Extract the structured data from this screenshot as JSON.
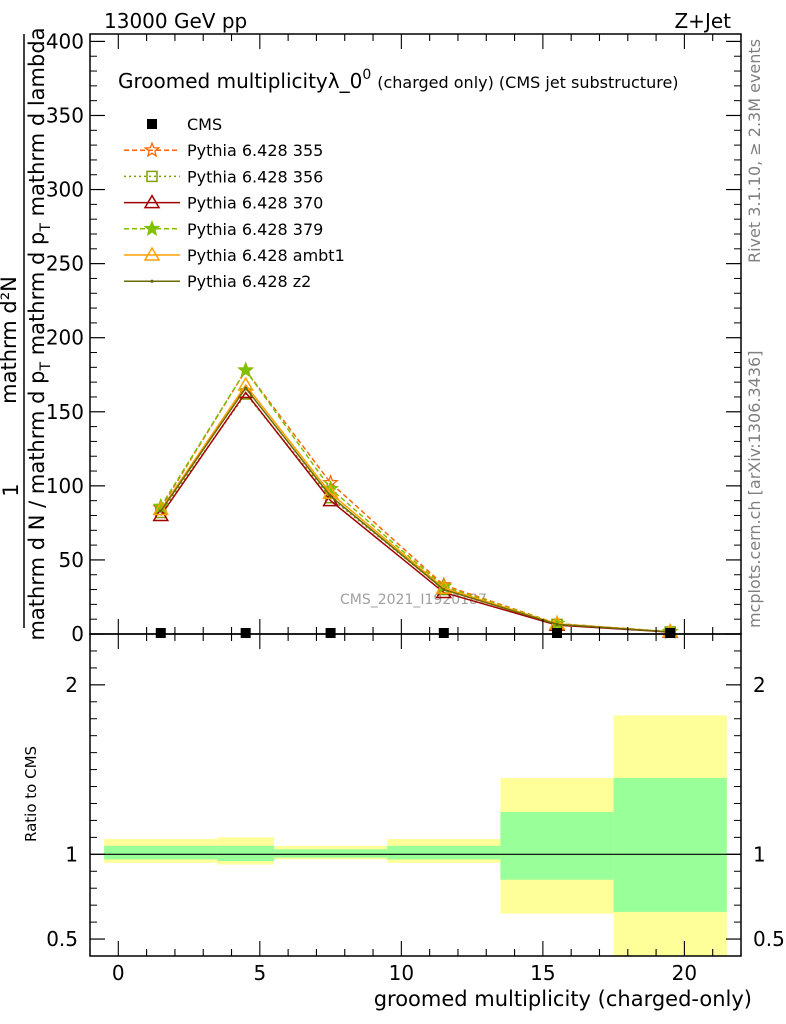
{
  "header": {
    "left": "13000 GeV pp",
    "right": "Z+Jet"
  },
  "side_labels": {
    "rivet": "Rivet 3.1.10, ≥ 2.3M events",
    "mcplots": "mcplots.cern.ch [arXiv:1306.3436]"
  },
  "watermark": "CMS_2021_I1920187",
  "chart_data": [
    {
      "type": "line",
      "title": "Groomed multiplicityλ_0",
      "title_superscript": "0",
      "subtitle": "(charged only) (CMS jet substructure)",
      "ylabel_parts": {
        "numerator": "mathrm d²N",
        "denominator_start": "mathrm d N / mathrm d p",
        "t1": "T",
        "denominator_mid": " mathrm d p",
        "t2": "T",
        "denominator_end": " mathrm d lambda",
        "prefix": "1"
      },
      "ylim": [
        0,
        405
      ],
      "yticks": [
        0,
        50,
        100,
        150,
        200,
        250,
        300,
        350,
        400
      ],
      "xlim": [
        -1,
        22
      ],
      "grid": false,
      "legend_position": "top-left",
      "data_series": {
        "name": "CMS",
        "color": "#000000",
        "x": [
          1.5,
          4.5,
          7.5,
          11.5,
          15.5,
          19.5
        ],
        "y": [
          0,
          0,
          0,
          0,
          0,
          0
        ]
      },
      "series": [
        {
          "name": "Pythia 6.428 355",
          "color": "#ff6600",
          "dash": "5,3",
          "marker": "star-open",
          "x": [
            1.5,
            4.5,
            7.5,
            11.5,
            15.5,
            19.5
          ],
          "y": [
            85,
            178,
            102,
            33,
            7,
            1.5
          ]
        },
        {
          "name": "Pythia 6.428 356",
          "color": "#7fa000",
          "dash": "2,3",
          "marker": "square-open",
          "x": [
            1.5,
            4.5,
            7.5,
            11.5,
            15.5,
            19.5
          ],
          "y": [
            82,
            162,
            92,
            30,
            6.5,
            1.4
          ]
        },
        {
          "name": "Pythia 6.428 370",
          "color": "#a00000",
          "dash": "",
          "marker": "triangle-open",
          "x": [
            1.5,
            4.5,
            7.5,
            11.5,
            15.5,
            19.5
          ],
          "y": [
            80,
            163,
            90,
            28,
            6,
            1.3
          ]
        },
        {
          "name": "Pythia 6.428 379",
          "color": "#7fc000",
          "dash": "5,3",
          "marker": "star",
          "x": [
            1.5,
            4.5,
            7.5,
            11.5,
            15.5,
            19.5
          ],
          "y": [
            86,
            178,
            98,
            32,
            7,
            1.5
          ]
        },
        {
          "name": "Pythia 6.428 ambt1",
          "color": "#ffa000",
          "dash": "",
          "marker": "triangle-open",
          "x": [
            1.5,
            4.5,
            7.5,
            11.5,
            15.5,
            19.5
          ],
          "y": [
            84,
            168,
            95,
            31,
            6.8,
            1.5
          ]
        },
        {
          "name": "Pythia 6.428 z2",
          "color": "#6a6a00",
          "dash": "",
          "marker": "dot",
          "x": [
            1.5,
            4.5,
            7.5,
            11.5,
            15.5,
            19.5
          ],
          "y": [
            83,
            166,
            93,
            30,
            6.5,
            1.4
          ]
        }
      ]
    },
    {
      "type": "area",
      "ylabel": "Ratio to CMS",
      "xlabel": "groomed multiplicity (charged-only)",
      "ylim": [
        0.4,
        2.3
      ],
      "yticks": [
        0.5,
        1,
        2
      ],
      "xlim": [
        -1,
        22
      ],
      "xticks": [
        0,
        5,
        10,
        15,
        20
      ],
      "reference_line": 1,
      "bands": [
        {
          "x": [
            -0.5,
            3.5
          ],
          "inner": [
            0.97,
            1.05
          ],
          "outer": [
            0.95,
            1.09
          ]
        },
        {
          "x": [
            3.5,
            5.5
          ],
          "inner": [
            0.96,
            1.05
          ],
          "outer": [
            0.94,
            1.1
          ]
        },
        {
          "x": [
            5.5,
            9.5
          ],
          "inner": [
            0.98,
            1.03
          ],
          "outer": [
            0.97,
            1.05
          ]
        },
        {
          "x": [
            9.5,
            13.5
          ],
          "inner": [
            0.97,
            1.05
          ],
          "outer": [
            0.95,
            1.09
          ]
        },
        {
          "x": [
            13.5,
            17.5
          ],
          "inner": [
            0.85,
            1.25
          ],
          "outer": [
            0.65,
            1.45
          ]
        },
        {
          "x": [
            17.5,
            21.5
          ],
          "inner": [
            0.66,
            1.45
          ],
          "outer": [
            0.35,
            1.82
          ]
        }
      ],
      "colors": {
        "inner": "#99ff99",
        "outer": "#ffff99"
      }
    }
  ]
}
